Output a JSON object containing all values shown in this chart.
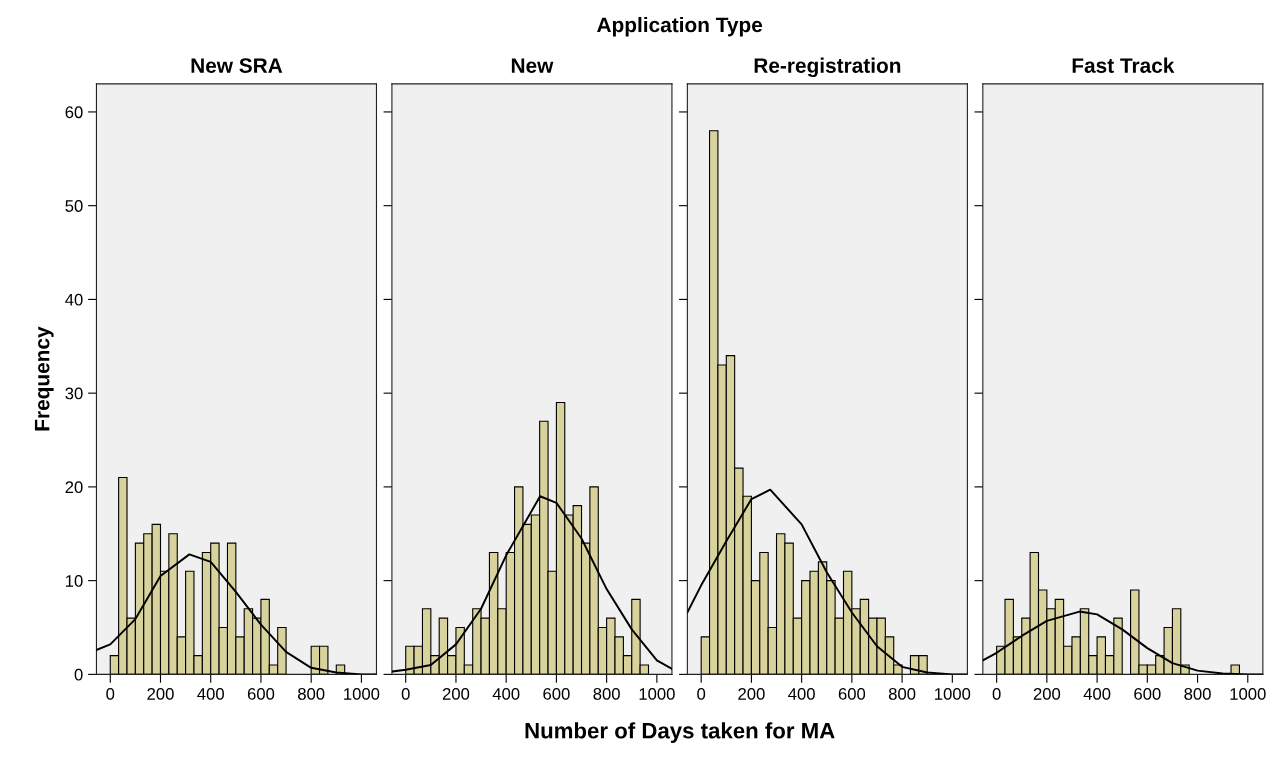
{
  "chart_data": [
    {
      "type": "histogram",
      "title": "New SRA",
      "ylabel": "Frequency",
      "annotations": [
        "Application Type",
        "Number of Days taken for MA"
      ],
      "series": [
        {
          "type": "histogram",
          "color": "#d8d29c",
          "bins": [
            0,
            33.3,
            66.7,
            100,
            133.3,
            166.7,
            200,
            233.3,
            266.7,
            300,
            333.3,
            366.7,
            400,
            433.3,
            466.7,
            500,
            533.3,
            566.7,
            600,
            633.3,
            666.7,
            700,
            733.3,
            766.7,
            800,
            833.3,
            866.7,
            900,
            933.3,
            966.7,
            1000
          ],
          "values": [
            2,
            21,
            6,
            14,
            15,
            16,
            11,
            15,
            4,
            11,
            2,
            13,
            14,
            5,
            14,
            4,
            7,
            6,
            8,
            1,
            5,
            0,
            0,
            0,
            3,
            3,
            0,
            1,
            0,
            0
          ]
        },
        {
          "type": "line",
          "color": "#000000",
          "x": [
            -55,
            0,
            100,
            200,
            315,
            400,
            500,
            600,
            700,
            800,
            900,
            1000,
            1060
          ],
          "values": [
            2.6,
            3.2,
            5.9,
            10.5,
            12.8,
            12,
            8.8,
            5.3,
            2.4,
            0.7,
            0.2,
            0,
            0
          ]
        }
      ],
      "xlim": [
        -55,
        1060
      ],
      "xticks": [
        0,
        200,
        400,
        600,
        800,
        1000
      ],
      "ylim": [
        0,
        63
      ],
      "yticks": [
        0,
        10,
        20,
        30,
        40,
        50,
        60
      ],
      "grid": false
    },
    {
      "type": "histogram",
      "title": "New",
      "series": [
        {
          "type": "histogram",
          "color": "#d8d29c",
          "bins": [
            0,
            33.3,
            66.7,
            100,
            133.3,
            166.7,
            200,
            233.3,
            266.7,
            300,
            333.3,
            366.7,
            400,
            433.3,
            466.7,
            500,
            533.3,
            566.7,
            600,
            633.3,
            666.7,
            700,
            733.3,
            766.7,
            800,
            833.3,
            866.7,
            900,
            933.3,
            966.7,
            1000
          ],
          "values": [
            3,
            3,
            7,
            2,
            6,
            2,
            5,
            1,
            7,
            6,
            13,
            7,
            13,
            20,
            16,
            17,
            27,
            11,
            29,
            17,
            18,
            14,
            20,
            5,
            6,
            4,
            2,
            8,
            1,
            0
          ]
        },
        {
          "type": "line",
          "color": "#000000",
          "x": [
            -55,
            0,
            100,
            200,
            300,
            400,
            535,
            600,
            700,
            800,
            900,
            1000,
            1060
          ],
          "values": [
            0.3,
            0.5,
            1,
            3.2,
            7,
            12.7,
            19,
            18.3,
            14.5,
            9.1,
            4.8,
            1.5,
            0.6
          ]
        }
      ],
      "xlim": [
        -55,
        1060
      ],
      "xticks": [
        0,
        200,
        400,
        600,
        800,
        1000
      ],
      "ylim": [
        0,
        63
      ],
      "yticks": [
        0,
        10,
        20,
        30,
        40,
        50,
        60
      ],
      "tick_labels": "x",
      "grid": false
    },
    {
      "type": "histogram",
      "title": "Re-registration",
      "series": [
        {
          "type": "histogram",
          "color": "#d8d29c",
          "bins": [
            0,
            33.3,
            66.7,
            100,
            133.3,
            166.7,
            200,
            233.3,
            266.7,
            300,
            333.3,
            366.7,
            400,
            433.3,
            466.7,
            500,
            533.3,
            566.7,
            600,
            633.3,
            666.7,
            700,
            733.3,
            766.7,
            800,
            833.3,
            866.7,
            900,
            933.3,
            966.7,
            1000
          ],
          "values": [
            4,
            58,
            33,
            34,
            22,
            19,
            10,
            13,
            5,
            15,
            14,
            6,
            10,
            11,
            12,
            10,
            6,
            11,
            7,
            8,
            6,
            6,
            4,
            1,
            0,
            2,
            2,
            0,
            0,
            0
          ]
        },
        {
          "type": "line",
          "color": "#000000",
          "x": [
            -55,
            0,
            100,
            200,
            275,
            400,
            500,
            600,
            700,
            800,
            900,
            1000,
            1060
          ],
          "values": [
            6.6,
            9.5,
            14.2,
            18.7,
            19.7,
            16,
            10.9,
            6.6,
            3,
            0.8,
            0.2,
            0,
            0
          ]
        }
      ],
      "xlim": [
        -55,
        1060
      ],
      "xticks": [
        0,
        200,
        400,
        600,
        800,
        1000
      ],
      "ylim": [
        0,
        63
      ],
      "yticks": [
        0,
        10,
        20,
        30,
        40,
        50,
        60
      ],
      "tick_labels": "x",
      "grid": false
    },
    {
      "type": "histogram",
      "title": "Fast Track",
      "series": [
        {
          "type": "histogram",
          "color": "#d8d29c",
          "bins": [
            0,
            33.3,
            66.7,
            100,
            133.3,
            166.7,
            200,
            233.3,
            266.7,
            300,
            333.3,
            366.7,
            400,
            433.3,
            466.7,
            500,
            533.3,
            566.7,
            600,
            633.3,
            666.7,
            700,
            733.3,
            766.7,
            800,
            833.3,
            866.7,
            900,
            933.3,
            966.7,
            1000
          ],
          "values": [
            3,
            8,
            4,
            6,
            13,
            9,
            7,
            8,
            3,
            4,
            7,
            2,
            4,
            2,
            6,
            0,
            9,
            1,
            1,
            2,
            5,
            7,
            1,
            0,
            0,
            0,
            0,
            0,
            1,
            0
          ]
        },
        {
          "type": "line",
          "color": "#000000",
          "x": [
            -55,
            0,
            100,
            200,
            330,
            400,
            500,
            600,
            700,
            800,
            900,
            1000,
            1060
          ],
          "values": [
            1.5,
            2.3,
            4.1,
            5.7,
            6.7,
            6.4,
            4.8,
            2.8,
            1.2,
            0.4,
            0.1,
            0,
            0
          ]
        }
      ],
      "xlim": [
        -55,
        1060
      ],
      "xticks": [
        0,
        200,
        400,
        600,
        800,
        1000
      ],
      "ylim": [
        0,
        63
      ],
      "yticks": [
        0,
        10,
        20,
        30,
        40,
        50,
        60
      ],
      "tick_labels": "x",
      "grid": false
    }
  ]
}
